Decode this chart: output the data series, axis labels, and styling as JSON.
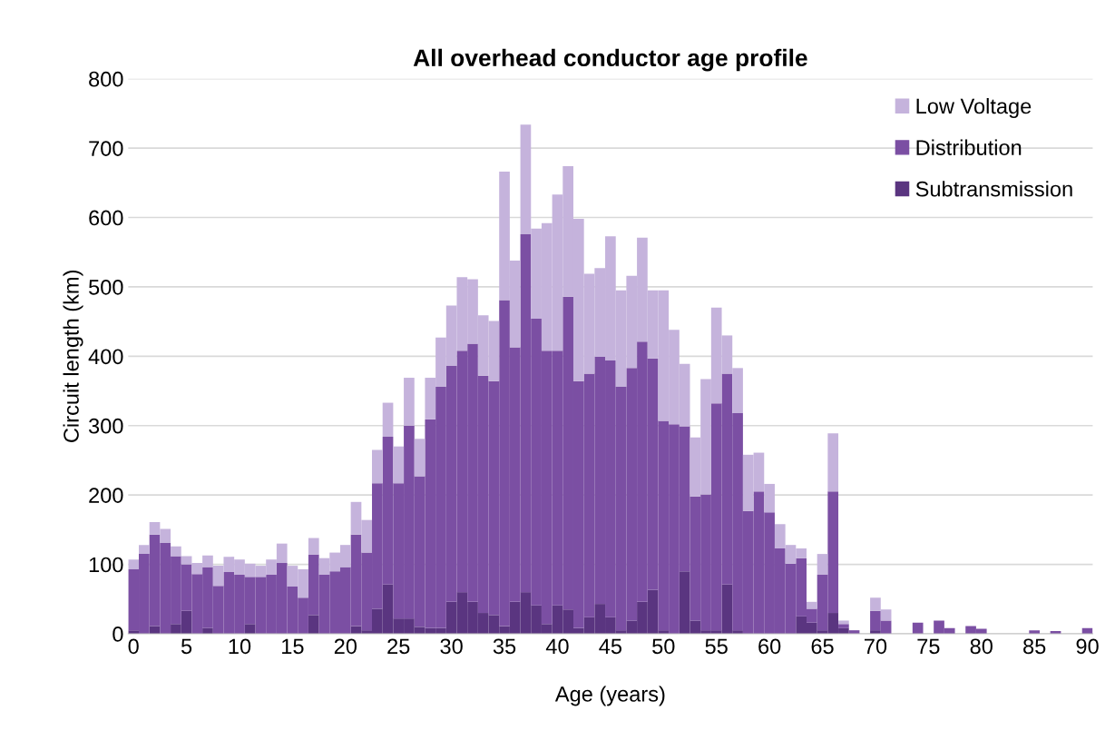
{
  "chart_data": {
    "type": "bar",
    "stacked": true,
    "title": "All overhead conductor age profile",
    "xlabel": "Age (years)",
    "ylabel": "Circuit length (km)",
    "categories": [
      "0",
      null,
      null,
      null,
      null,
      "5",
      null,
      null,
      null,
      null,
      "10",
      null,
      null,
      null,
      null,
      "15",
      null,
      null,
      null,
      null,
      "20",
      null,
      null,
      null,
      null,
      "25",
      null,
      null,
      null,
      null,
      "30",
      null,
      null,
      null,
      null,
      "35",
      null,
      null,
      null,
      null,
      "40",
      null,
      null,
      null,
      null,
      "45",
      null,
      null,
      null,
      null,
      "50",
      null,
      null,
      null,
      null,
      "55",
      null,
      null,
      null,
      null,
      "60",
      null,
      null,
      null,
      null,
      "65",
      null,
      null,
      null,
      null,
      "70",
      null,
      null,
      null,
      null,
      "75",
      null,
      null,
      null,
      null,
      "80",
      null,
      null,
      null,
      null,
      "85",
      null,
      null,
      null,
      null,
      "90"
    ],
    "series": [
      {
        "name": "Subtransmission",
        "color": "#5a3580",
        "values": [
          5,
          0,
          11,
          0,
          14,
          33,
          0,
          8,
          0,
          0,
          0,
          14,
          0,
          0,
          0,
          0,
          0,
          27,
          0,
          0,
          0,
          11,
          5,
          36,
          71,
          22,
          22,
          10,
          8,
          8,
          46,
          60,
          46,
          30,
          27,
          11,
          46,
          60,
          41,
          14,
          41,
          35,
          8,
          24,
          43,
          24,
          5,
          19,
          46,
          63,
          5,
          0,
          90,
          19,
          5,
          5,
          71,
          5,
          0,
          0,
          0,
          0,
          0,
          25,
          16,
          5,
          30,
          8,
          0,
          0,
          5,
          0,
          0,
          0,
          0,
          0,
          0,
          0,
          0,
          0,
          0,
          0,
          0,
          0,
          0,
          0,
          0,
          0,
          0,
          0,
          0
        ]
      },
      {
        "name": "Distribution",
        "color": "#7b4fa3",
        "values": [
          88,
          115,
          132,
          131,
          98,
          67,
          86,
          88,
          69,
          89,
          85,
          68,
          82,
          85,
          102,
          68,
          52,
          87,
          85,
          90,
          96,
          132,
          112,
          181,
          213,
          195,
          278,
          217,
          301,
          348,
          340,
          348,
          372,
          342,
          337,
          470,
          367,
          516,
          413,
          394,
          367,
          451,
          356,
          351,
          356,
          370,
          351,
          364,
          375,
          334,
          302,
          302,
          209,
          179,
          196,
          327,
          304,
          313,
          177,
          205,
          175,
          123,
          101,
          84,
          20,
          80,
          175,
          6,
          5,
          0,
          28,
          19,
          0,
          0,
          16,
          0,
          19,
          8,
          0,
          11,
          7,
          0,
          0,
          0,
          0,
          5,
          0,
          4,
          0,
          0,
          8
        ]
      },
      {
        "name": "Low Voltage",
        "color": "#c5b3dc",
        "values": [
          14,
          13,
          18,
          20,
          14,
          12,
          16,
          17,
          29,
          22,
          22,
          19,
          16,
          22,
          28,
          30,
          41,
          24,
          24,
          27,
          32,
          47,
          47,
          48,
          49,
          53,
          69,
          54,
          60,
          71,
          87,
          106,
          93,
          87,
          87,
          185,
          125,
          158,
          130,
          184,
          225,
          188,
          234,
          144,
          128,
          179,
          139,
          133,
          150,
          98,
          188,
          136,
          90,
          85,
          166,
          138,
          55,
          65,
          81,
          56,
          41,
          35,
          27,
          14,
          10,
          30,
          84,
          5,
          0,
          0,
          19,
          16,
          0,
          0,
          0,
          0,
          0,
          0,
          0,
          0,
          0,
          0,
          0,
          0,
          0,
          0,
          0,
          0,
          0,
          0,
          0
        ]
      }
    ],
    "ylim": [
      0,
      800
    ],
    "yticks": [
      0,
      100,
      200,
      300,
      400,
      500,
      600,
      700,
      800
    ],
    "grid": "y",
    "legend": "top right"
  }
}
